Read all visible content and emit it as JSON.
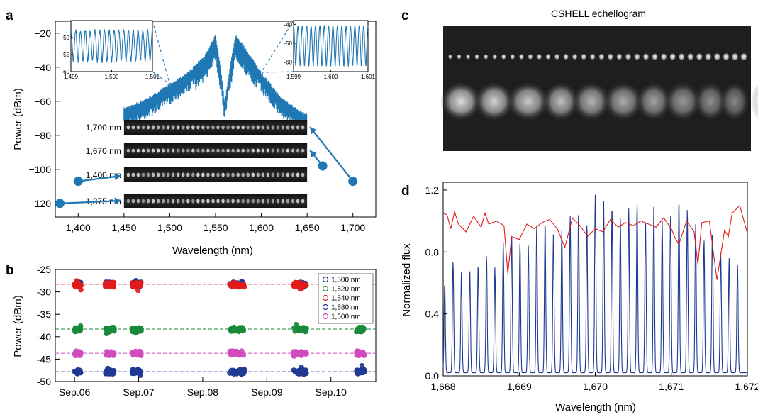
{
  "panels": {
    "a": "a",
    "b": "b",
    "c": "c",
    "d": "d"
  },
  "chart_data": [
    {
      "id": "a",
      "type": "line",
      "xlabel": "Wavelength (nm)",
      "ylabel": "Power (dBm)",
      "xlim": [
        1375,
        1725
      ],
      "ylim": [
        -128,
        -13
      ],
      "xticks": [
        1400,
        1450,
        1500,
        1550,
        1600,
        1650,
        1700
      ],
      "xtick_labels": [
        "1,400",
        "1,450",
        "1,500",
        "1,550",
        "1,600",
        "1,650",
        "1,700"
      ],
      "yticks": [
        -20,
        -40,
        -60,
        -80,
        -100,
        -120
      ],
      "ytick_labels": [
        "−20",
        "−40",
        "−60",
        "−80",
        "−100",
        "− 120"
      ],
      "series_color": "#1f77b4",
      "spectrum_envelope": {
        "x": [
          1450,
          1460,
          1480,
          1500,
          1520,
          1540,
          1550,
          1556,
          1560,
          1566,
          1572,
          1580,
          1600,
          1620,
          1640,
          1650
        ],
        "y": [
          -65,
          -63,
          -58,
          -51,
          -44,
          -33,
          -22,
          -43,
          -62,
          -40,
          -22,
          -28,
          -44,
          -58,
          -66,
          -69
        ]
      },
      "insets": [
        {
          "xlim": [
            1499,
            1501
          ],
          "ylim": [
            -60,
            -45
          ],
          "xticks": [
            1499,
            1500,
            1501
          ],
          "xtick_labels": [
            "1,499",
            "1,500",
            "1,501"
          ],
          "yticks": [
            -50,
            -55,
            -60
          ],
          "ytick_labels": [
            "-50",
            "-55",
            "-60"
          ],
          "peak": -48,
          "trough": -57,
          "fringes": 17
        },
        {
          "xlim": [
            1599,
            1601
          ],
          "ylim": [
            -65,
            -38
          ],
          "xticks": [
            1599,
            1600,
            1601
          ],
          "xtick_labels": [
            "1,599",
            "1,600",
            "1,601"
          ],
          "yticks": [
            -40,
            -50,
            -60
          ],
          "ytick_labels": [
            "-40",
            "-50",
            "-60"
          ],
          "peak": -41,
          "trough": -62,
          "fringes": 17
        }
      ],
      "echellogram_strips": [
        {
          "label": "1,700 nm",
          "marker_x": 1700,
          "marker_y": -107
        },
        {
          "label": "1,670 nm",
          "marker_x": 1667,
          "marker_y": -98
        },
        {
          "label": "1,400 nm",
          "marker_x": 1400,
          "marker_y": -107
        },
        {
          "label": "1,375 nm",
          "marker_x": 1380,
          "marker_y": -120
        }
      ]
    },
    {
      "id": "b",
      "type": "scatter",
      "ylabel": "Power (dBm)",
      "ylim": [
        -50,
        -25
      ],
      "yticks": [
        -25,
        -30,
        -35,
        -40,
        -45,
        -50
      ],
      "ytick_labels": [
        "-25",
        "-30",
        "-35",
        "-40",
        "-45",
        "-50"
      ],
      "xlim": [
        5.7,
        10.7
      ],
      "xticks": [
        6,
        7,
        8,
        9,
        10
      ],
      "xtick_labels": [
        "Sep.06",
        "Sep.07",
        "Sep.08",
        "Sep.09",
        "Sep.10"
      ],
      "measurement_windows": [
        [
          6.0,
          6.1
        ],
        [
          6.48,
          6.62
        ],
        [
          6.9,
          7.04
        ],
        [
          8.42,
          8.65
        ],
        [
          9.42,
          9.62
        ],
        [
          10.4,
          10.52
        ]
      ],
      "series": [
        {
          "name": "1,500 nm",
          "color": "#1f3a93",
          "level": -28.3
        },
        {
          "name": "1,520 nm",
          "color": "#1a8a3a",
          "level": -38.4
        },
        {
          "name": "1,540 nm",
          "color": "#e21b1b",
          "level": -28.4
        },
        {
          "name": "1,580 nm",
          "color": "#1f3a93",
          "level": -47.8
        },
        {
          "name": "1,600 nm",
          "color": "#d14bbd",
          "level": -43.7
        }
      ],
      "reference_lines": [
        {
          "y": -28.3,
          "color": "#e21b1b"
        },
        {
          "y": -38.3,
          "color": "#1a8a3a"
        },
        {
          "y": -43.7,
          "color": "#d14bbd"
        },
        {
          "y": -47.8,
          "color": "#1f3a93"
        }
      ]
    },
    {
      "id": "c",
      "type": "image",
      "title": "CSHELL echellogram",
      "comb_spots": 34,
      "broad_blobs": 12
    },
    {
      "id": "d",
      "type": "line",
      "xlabel": "Wavelength (nm)",
      "ylabel": "Normalized flux",
      "xlim": [
        1668,
        1672
      ],
      "ylim": [
        0,
        1.25
      ],
      "xticks": [
        1668,
        1669,
        1670,
        1671,
        1672
      ],
      "xtick_labels": [
        "1,668",
        "1,669",
        "1,670",
        "1,671",
        "1,672"
      ],
      "yticks": [
        0.0,
        0.4,
        0.8,
        1.2
      ],
      "ytick_labels": [
        "0.0",
        "0.4",
        "0.8",
        "1.2"
      ],
      "comb_color": "#1f3a93",
      "atmosphere_color": "#e21b1b",
      "comb_peaks": {
        "x": [
          1668.02,
          1668.13,
          1668.24,
          1668.35,
          1668.46,
          1668.57,
          1668.68,
          1668.79,
          1668.9,
          1669.01,
          1669.12,
          1669.23,
          1669.34,
          1669.45,
          1669.56,
          1669.67,
          1669.78,
          1669.89,
          1670.0,
          1670.11,
          1670.22,
          1670.33,
          1670.44,
          1670.55,
          1670.66,
          1670.77,
          1670.88,
          1670.99,
          1671.1,
          1671.21,
          1671.32,
          1671.43,
          1671.54,
          1671.65,
          1671.76,
          1671.87
        ],
        "y": [
          0.58,
          0.72,
          0.65,
          0.66,
          0.7,
          0.76,
          0.68,
          0.85,
          0.9,
          0.84,
          0.82,
          0.96,
          0.98,
          0.9,
          0.92,
          1.02,
          1.05,
          0.96,
          1.15,
          1.12,
          1.08,
          1.01,
          1.06,
          1.1,
          1.0,
          1.08,
          0.98,
          1.02,
          1.12,
          1.06,
          0.96,
          0.86,
          0.92,
          0.78,
          0.74,
          0.7
        ]
      },
      "atmosphere": {
        "x": [
          1668.0,
          1668.05,
          1668.1,
          1668.15,
          1668.2,
          1668.3,
          1668.4,
          1668.5,
          1668.55,
          1668.6,
          1668.7,
          1668.8,
          1668.85,
          1668.9,
          1669.0,
          1669.1,
          1669.2,
          1669.3,
          1669.4,
          1669.5,
          1669.6,
          1669.7,
          1669.8,
          1669.9,
          1670.0,
          1670.1,
          1670.2,
          1670.3,
          1670.4,
          1670.5,
          1670.6,
          1670.7,
          1670.8,
          1670.9,
          1671.0,
          1671.05,
          1671.1,
          1671.2,
          1671.3,
          1671.35,
          1671.4,
          1671.5,
          1671.6,
          1671.7,
          1671.75,
          1671.8,
          1671.9,
          1672.0
        ],
        "y": [
          1.05,
          1.04,
          0.95,
          1.06,
          0.98,
          0.93,
          1.03,
          0.96,
          1.05,
          0.98,
          1.0,
          0.97,
          0.66,
          0.9,
          0.88,
          0.98,
          0.95,
          0.99,
          1.01,
          0.95,
          0.83,
          1.02,
          0.97,
          0.9,
          0.95,
          0.93,
          1.01,
          0.96,
          0.99,
          0.97,
          1.0,
          0.98,
          0.96,
          1.02,
          0.95,
          0.89,
          0.85,
          1.0,
          0.93,
          0.72,
          0.99,
          1.0,
          0.62,
          0.94,
          0.9,
          1.05,
          1.1,
          0.92
        ]
      }
    }
  ]
}
